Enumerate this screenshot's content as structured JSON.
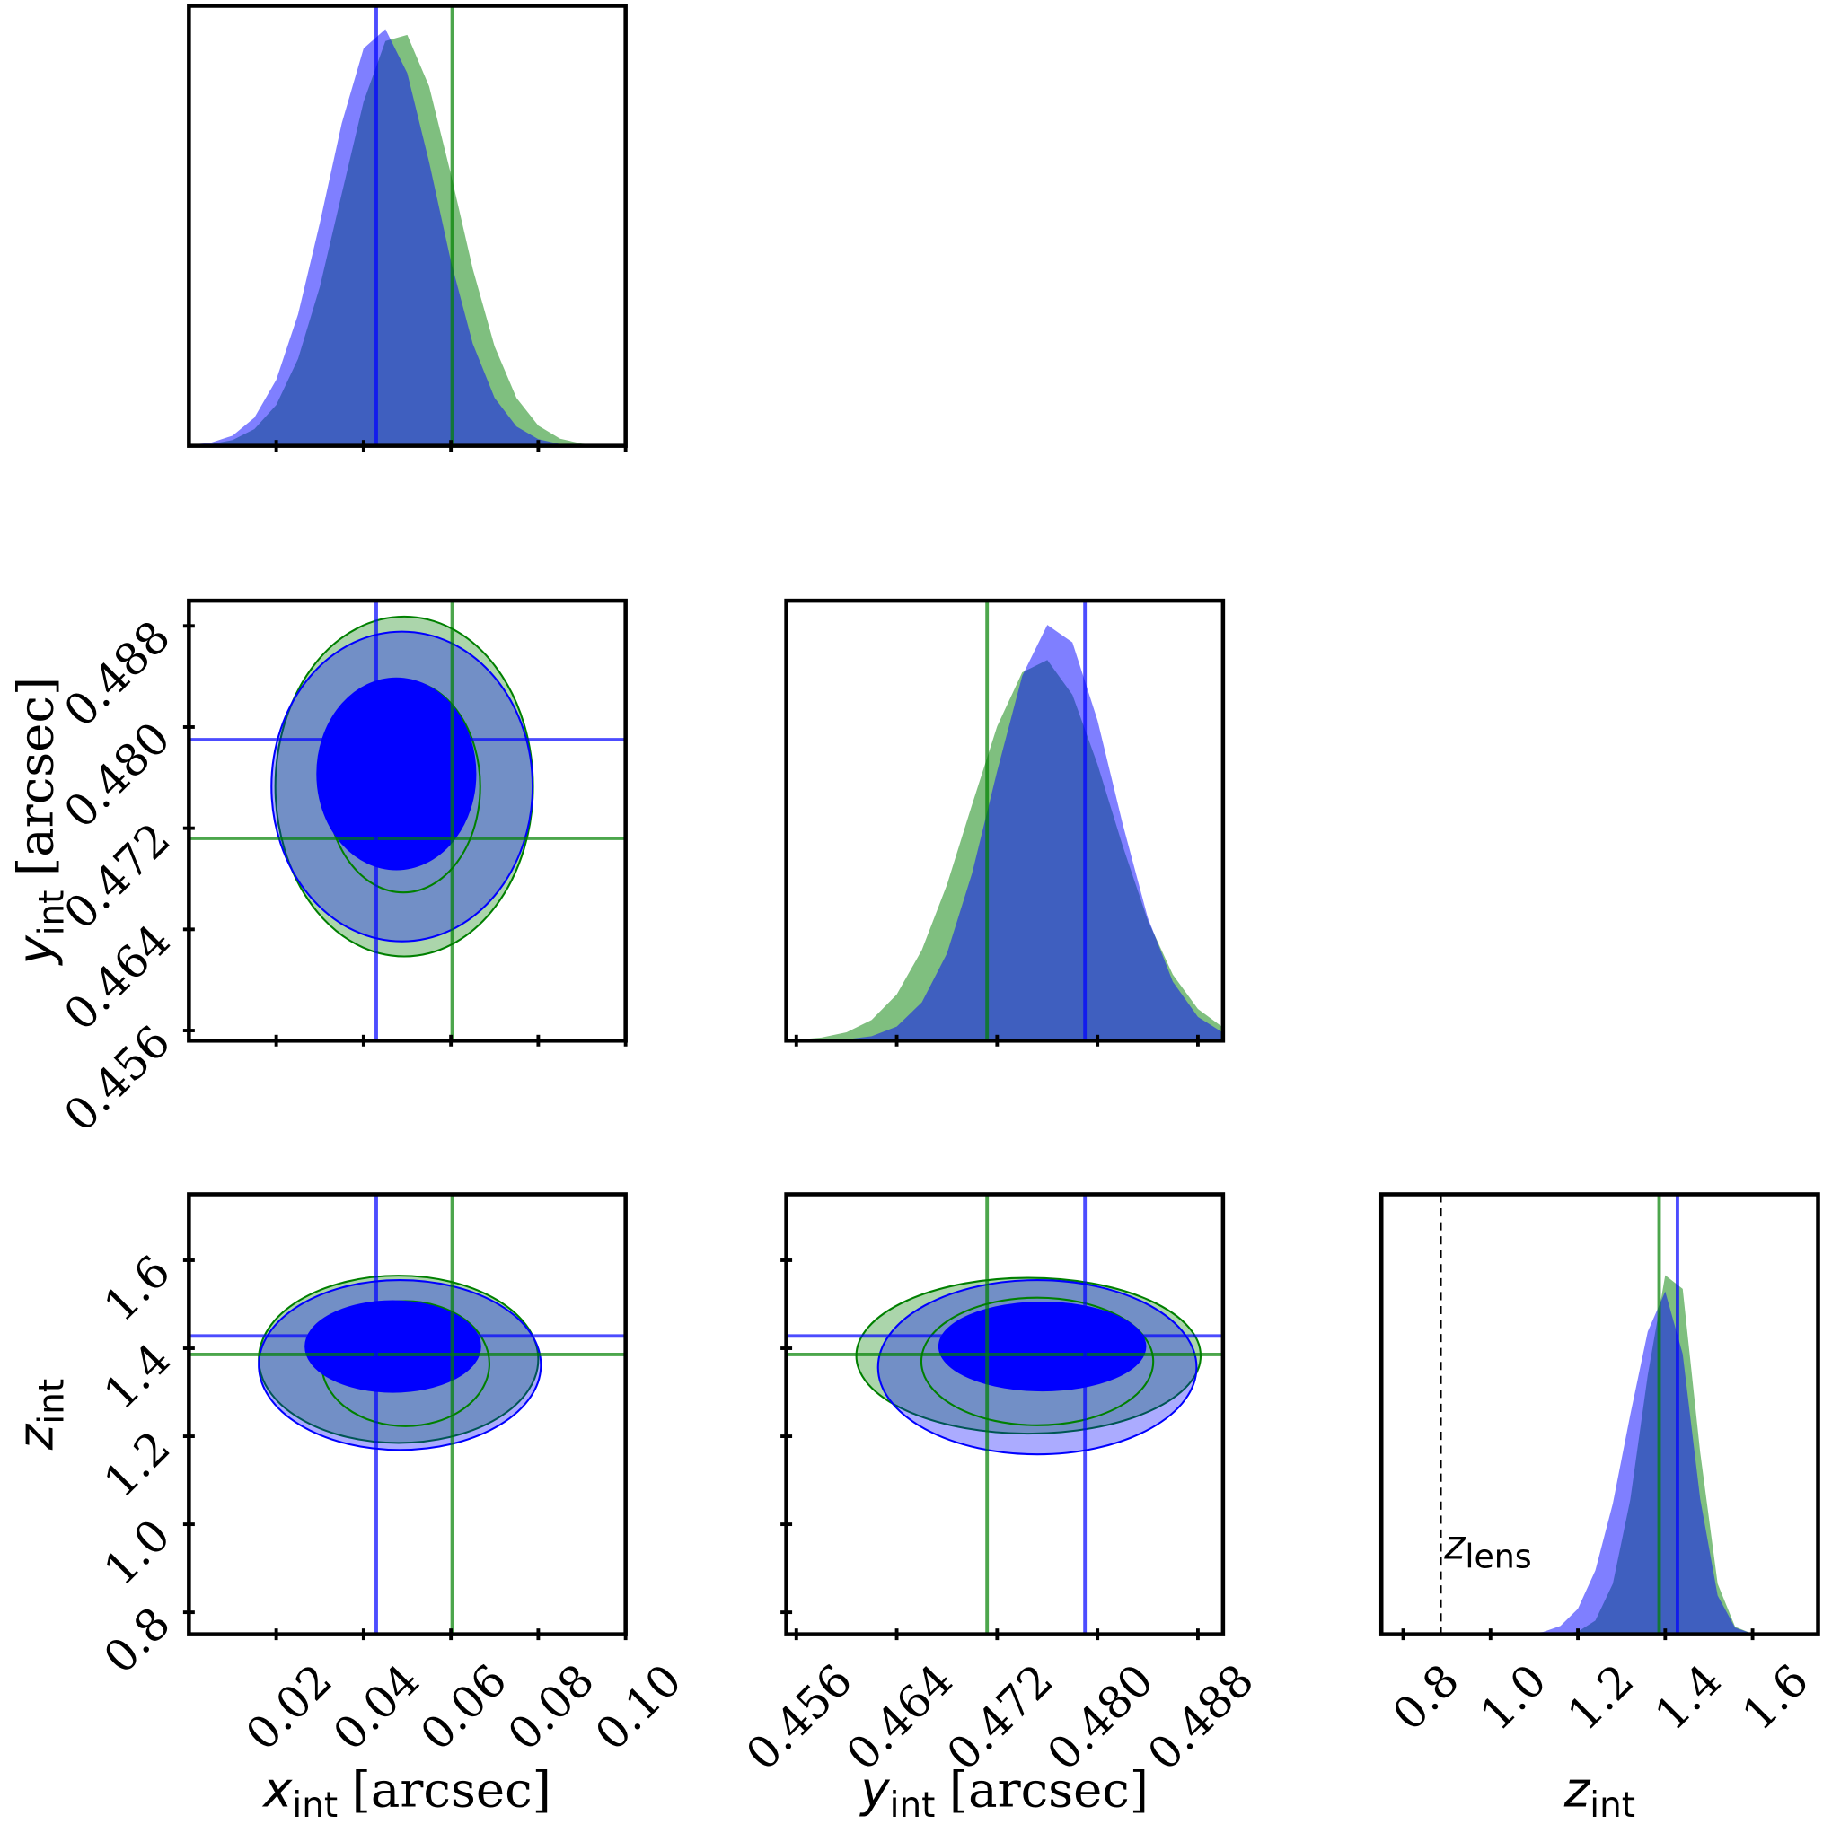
{
  "chart_data": {
    "type": "corner",
    "params": [
      {
        "label": {
          "symbol": "x",
          "sub": "int",
          "unit": "[arcsec]"
        },
        "lim": [
          0,
          0.1
        ],
        "ticks": [
          0.02,
          0.04,
          0.06,
          0.08,
          {
            "value": 0.1,
            "label": "0.10"
          }
        ]
      },
      {
        "label": {
          "symbol": "y",
          "sub": "int",
          "unit": "[arcsec]"
        },
        "lim": [
          0.4552,
          0.49
        ],
        "ticks": [
          0.456,
          0.464,
          0.472,
          {
            "value": 0.48,
            "label": "0.480"
          },
          0.488
        ]
      },
      {
        "label": {
          "symbol": "z",
          "sub": "int"
        },
        "lim": [
          0.75,
          1.75
        ],
        "ticks": [
          0.8,
          {
            "value": 1.0,
            "label": "1.0"
          },
          1.2,
          1.4,
          1.6
        ]
      }
    ],
    "series": [
      {
        "color": "#0000ff",
        "truth": [
          0.0429,
          0.479,
          1.428
        ]
      },
      {
        "color": "#008000",
        "truth": [
          0.0603,
          0.4712,
          1.386
        ]
      }
    ],
    "marginal_ylim": [
      0,
      1
    ],
    "marginals": [
      {
        "x": [
          0,
          0.005,
          0.01,
          0.015,
          0.02,
          0.025,
          0.03,
          0.035,
          0.04,
          0.045,
          0.05,
          0.055,
          0.06,
          0.065,
          0.07,
          0.075,
          0.08,
          0.085,
          0.09,
          0.095,
          0.1
        ],
        "series": [
          [
            0.002,
            0.007,
            0.023,
            0.064,
            0.15,
            0.299,
            0.507,
            0.733,
            0.903,
            0.947,
            0.847,
            0.645,
            0.419,
            0.232,
            0.109,
            0.044,
            0.015,
            0.004,
            0.001,
            0,
            0
          ],
          [
            0.001,
            0.004,
            0.013,
            0.038,
            0.093,
            0.198,
            0.362,
            0.573,
            0.782,
            0.92,
            0.934,
            0.817,
            0.617,
            0.402,
            0.226,
            0.109,
            0.046,
            0.016,
            0.005,
            0.001,
            0
          ]
        ]
      },
      {
        "x": [
          0.456,
          0.458,
          0.46,
          0.462,
          0.464,
          0.466,
          0.468,
          0.47,
          0.472,
          0.474,
          0.476,
          0.478,
          0.48,
          0.482,
          0.484,
          0.486,
          0.488,
          0.49
        ],
        "series": [
          [
            0,
            0.001,
            0.003,
            0.01,
            0.032,
            0.087,
            0.198,
            0.38,
            0.612,
            0.829,
            0.945,
            0.905,
            0.728,
            0.493,
            0.28,
            0.134,
            0.054,
            0.018
          ],
          [
            0.002,
            0.007,
            0.019,
            0.047,
            0.105,
            0.206,
            0.354,
            0.536,
            0.714,
            0.837,
            0.865,
            0.786,
            0.628,
            0.443,
            0.274,
            0.15,
            0.072,
            0.03
          ]
        ]
      },
      {
        "x": [
          1.04,
          1.08,
          1.12,
          1.16,
          1.2,
          1.24,
          1.28,
          1.32,
          1.36,
          1.4,
          1.44,
          1.48,
          1.52,
          1.56,
          1.6,
          1.64
        ],
        "series": [
          [
            0,
            0.001,
            0.005,
            0.019,
            0.058,
            0.145,
            0.297,
            0.499,
            0.688,
            0.779,
            0.637,
            0.308,
            0.088,
            0.015,
            0.001,
            0
          ],
          [
            0,
            0,
            0,
            0.001,
            0.006,
            0.031,
            0.115,
            0.306,
            0.589,
            0.816,
            0.785,
            0.414,
            0.115,
            0.017,
            0.001,
            0
          ]
        ]
      }
    ],
    "contours": [
      [
        {
          "inner": {
            "cx": 0.0475,
            "cy": 0.4763,
            "rx": 0.0181,
            "ry": 0.00755
          },
          "outer": {
            "cx": 0.0488,
            "cy": 0.4753,
            "rx": 0.0299,
            "ry": 0.01225
          }
        },
        {
          "inner": {
            "cx": 0.0491,
            "cy": 0.4753,
            "rx": 0.0176,
            "ry": 0.00838
          },
          "outer": {
            "cx": 0.0493,
            "cy": 0.4753,
            "rx": 0.0295,
            "ry": 0.01344
          }
        }
      ],
      [
        {
          "inner": {
            "cx": 0.0467,
            "cy": 1.404,
            "rx": 0.02,
            "ry": 0.103
          },
          "outer": {
            "cx": 0.0483,
            "cy": 1.362,
            "rx": 0.0323,
            "ry": 0.193
          }
        },
        {
          "inner": {
            "cx": 0.0496,
            "cy": 1.365,
            "rx": 0.0192,
            "ry": 0.142
          },
          "outer": {
            "cx": 0.048,
            "cy": 1.375,
            "rx": 0.032,
            "ry": 0.19
          }
        }
      ],
      [
        {
          "inner": {
            "cx": 0.4756,
            "cy": 1.404,
            "rx": 0.00821,
            "ry": 0.1
          },
          "outer": {
            "cx": 0.4752,
            "cy": 1.357,
            "rx": 0.01269,
            "ry": 0.198
          }
        },
        {
          "inner": {
            "cx": 0.4752,
            "cy": 1.37,
            "rx": 0.00924,
            "ry": 0.145
          },
          "outer": {
            "cx": 0.4745,
            "cy": 1.383,
            "rx": 0.01372,
            "ry": 0.177
          }
        }
      ]
    ],
    "annotation": {
      "symbol": "z",
      "sub": "lens",
      "value": 0.886
    }
  }
}
